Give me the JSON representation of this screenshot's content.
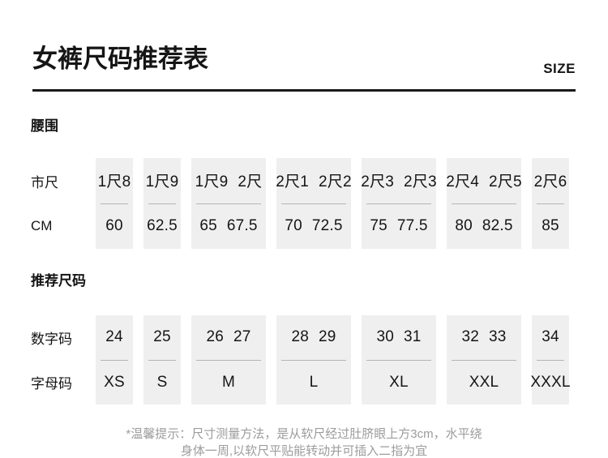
{
  "header": {
    "title": "女裤尺码推荐表",
    "corner_label": "SIZE"
  },
  "sections": [
    {
      "slug": "waist",
      "heading": "腰围",
      "row_labels": [
        "市尺",
        "CM"
      ],
      "columns": [
        {
          "top": [
            "1尺8"
          ],
          "bottom": [
            "60"
          ]
        },
        {
          "top": [
            "1尺9"
          ],
          "bottom": [
            "62.5"
          ]
        },
        {
          "top": [
            "1尺9",
            "2尺"
          ],
          "bottom": [
            "65",
            "67.5"
          ]
        },
        {
          "top": [
            "2尺1",
            "2尺2"
          ],
          "bottom": [
            "70",
            "72.5"
          ]
        },
        {
          "top": [
            "2尺3",
            "2尺3"
          ],
          "bottom": [
            "75",
            "77.5"
          ]
        },
        {
          "top": [
            "2尺4",
            "2尺5"
          ],
          "bottom": [
            "80",
            "82.5"
          ]
        },
        {
          "top": [
            "2尺6"
          ],
          "bottom": [
            "85"
          ]
        }
      ]
    },
    {
      "slug": "recommended-size",
      "heading": "推荐尺码",
      "row_labels": [
        "数字码",
        "字母码"
      ],
      "columns": [
        {
          "top": [
            "24"
          ],
          "bottom": [
            "XS"
          ]
        },
        {
          "top": [
            "25"
          ],
          "bottom": [
            "S"
          ]
        },
        {
          "top": [
            "26",
            "27"
          ],
          "bottom": [
            "M"
          ]
        },
        {
          "top": [
            "28",
            "29"
          ],
          "bottom": [
            "L"
          ]
        },
        {
          "top": [
            "30",
            "31"
          ],
          "bottom": [
            "XL"
          ]
        },
        {
          "top": [
            "32",
            "33"
          ],
          "bottom": [
            "XXL"
          ]
        },
        {
          "top": [
            "34"
          ],
          "bottom": [
            "XXXL"
          ]
        }
      ]
    }
  ],
  "footnote": {
    "line1": "*温馨提示：尺寸测量方法，是从软尺经过肚脐眼上方3cm，水平绕",
    "line2": "身体一周,以软尺平贴能转动并可插入二指为宜"
  },
  "colors": {
    "text": "#151515",
    "rule": "#191919",
    "box_bg": "#efefef",
    "cell_divider": "#b5b5b5",
    "footnote_text": "#9c9c9c"
  }
}
